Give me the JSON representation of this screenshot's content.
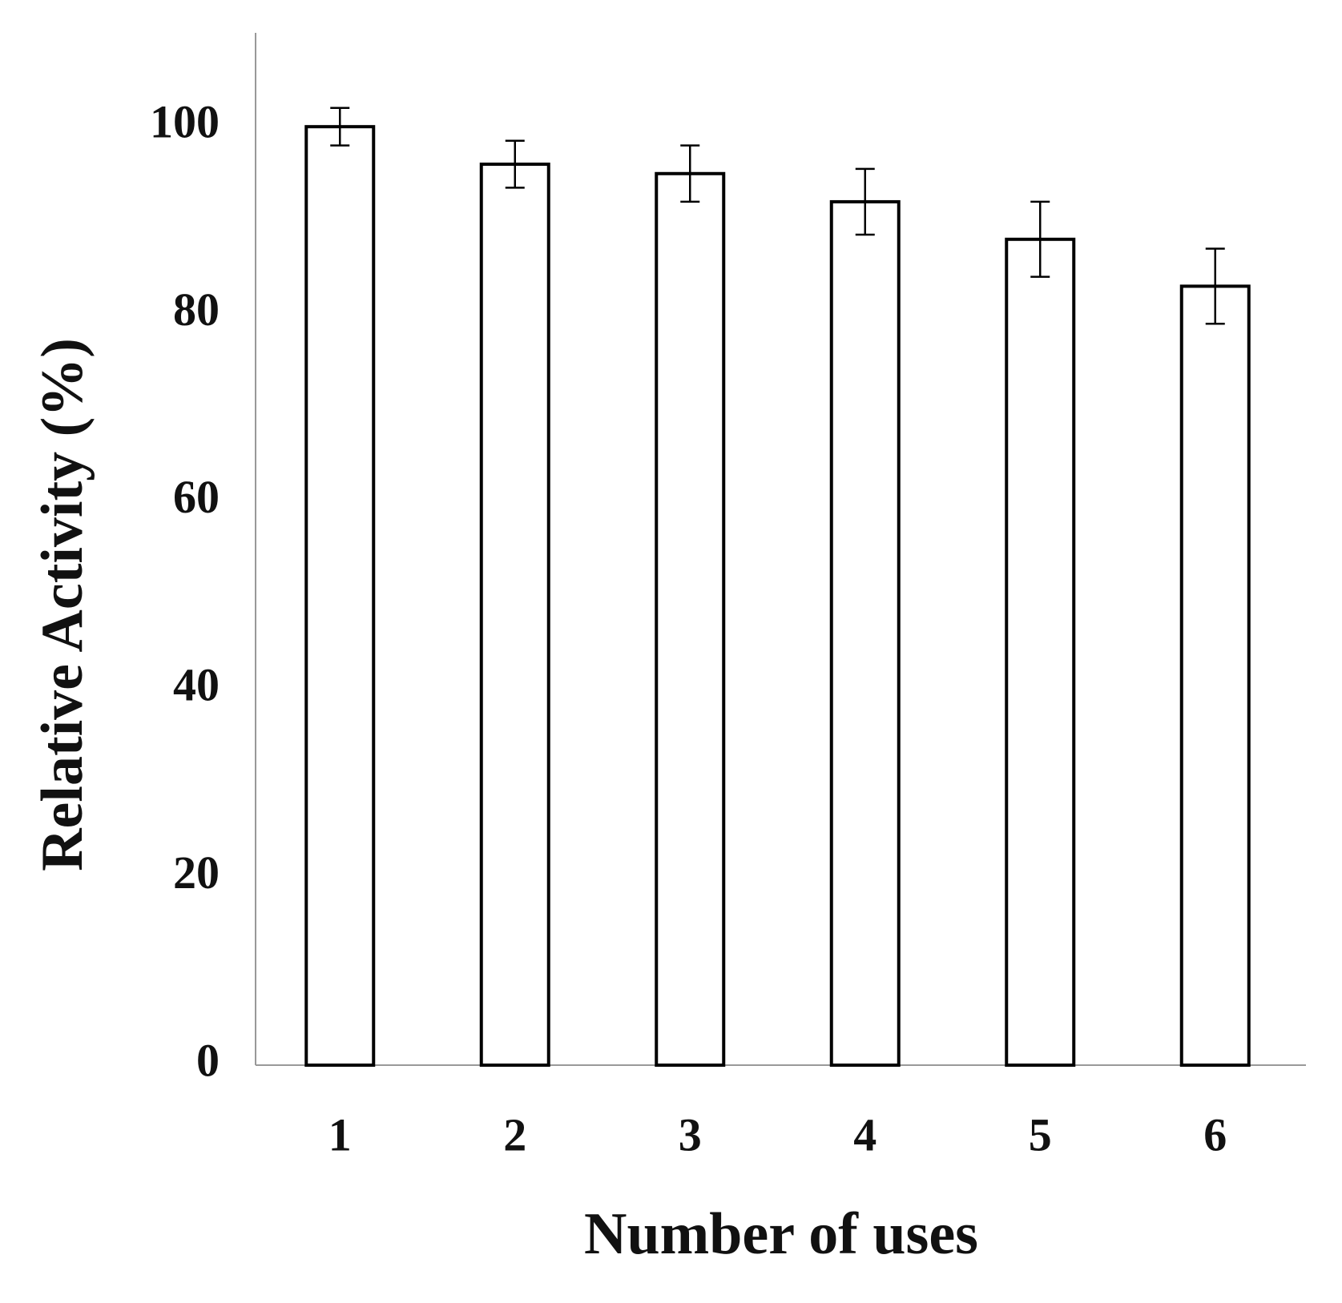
{
  "chart_data": {
    "type": "bar",
    "x_label": "Number of uses",
    "y_label": "Relative Activity (%)",
    "categories": [
      "1",
      "2",
      "3",
      "4",
      "5",
      "6"
    ],
    "values": [
      100,
      96,
      95,
      92,
      88,
      83
    ],
    "errors": [
      2,
      2.5,
      3,
      3.5,
      4,
      4
    ],
    "color": "#ffffff",
    "ylim": [
      0,
      110
    ],
    "yticks": [
      0,
      20,
      40,
      60,
      80,
      100
    ],
    "grid": false
  }
}
